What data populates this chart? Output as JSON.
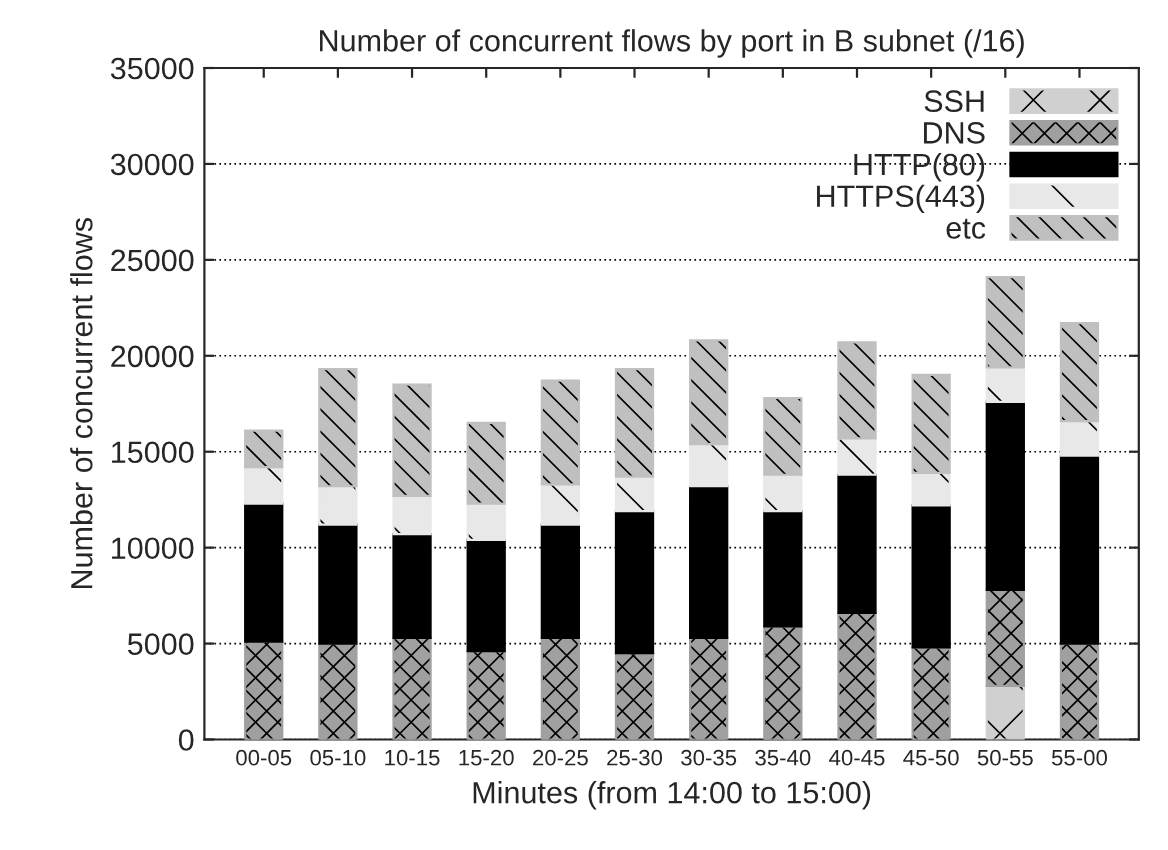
{
  "chart_data": {
    "type": "bar",
    "stacked": true,
    "title": "Number of concurrent flows by port in B subnet (/16)",
    "xlabel": "Minutes (from 14:00 to 15:00)",
    "ylabel": "Number of concurrent flows",
    "categories": [
      "00-05",
      "05-10",
      "10-15",
      "15-20",
      "20-25",
      "25-30",
      "30-35",
      "35-40",
      "40-45",
      "45-50",
      "50-55",
      "55-00"
    ],
    "series": [
      {
        "name": "SSH",
        "color": "#d0d0d0",
        "values": [
          0,
          0,
          0,
          0,
          0,
          0,
          0,
          0,
          0,
          0,
          2800,
          0
        ]
      },
      {
        "name": "DNS",
        "color": "#a0a0a0",
        "values": [
          5100,
          5000,
          5300,
          4600,
          5300,
          4500,
          5300,
          5900,
          6600,
          4800,
          5000,
          5000
        ]
      },
      {
        "name": "HTTP(80)",
        "color": "#000000",
        "values": [
          7200,
          6200,
          5400,
          5800,
          5900,
          7400,
          7900,
          6000,
          7200,
          7400,
          9800,
          9800
        ]
      },
      {
        "name": "HTTPS(443)",
        "color": "#e8e8e8",
        "values": [
          1900,
          2000,
          2000,
          1900,
          2100,
          1800,
          2200,
          1900,
          1900,
          1700,
          1800,
          1800
        ]
      },
      {
        "name": "etc",
        "color": "#c0c0c0",
        "values": [
          1900,
          6100,
          5800,
          4200,
          5400,
          5600,
          5400,
          4000,
          5000,
          5100,
          4700,
          5100
        ]
      }
    ],
    "ylim": [
      0,
      35000
    ],
    "yticks": [
      0,
      5000,
      10000,
      15000,
      20000,
      25000,
      30000,
      35000
    ],
    "grid": "y",
    "legend": "top right"
  }
}
